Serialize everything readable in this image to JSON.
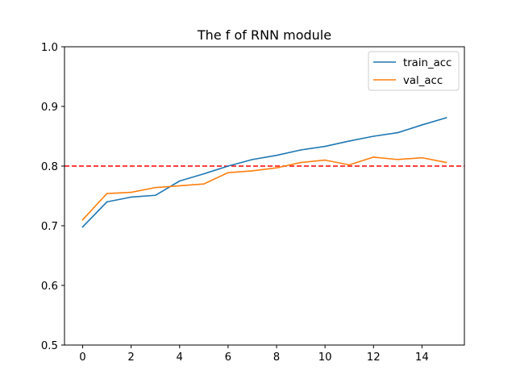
{
  "chart_data": {
    "type": "line",
    "title": "The f of RNN module",
    "xlabel": "",
    "ylabel": "",
    "x": [
      0,
      1,
      2,
      3,
      4,
      5,
      6,
      7,
      8,
      9,
      10,
      11,
      12,
      13,
      14,
      15
    ],
    "series": [
      {
        "name": "train_acc",
        "color": "#1f77b4",
        "values": [
          0.698,
          0.74,
          0.748,
          0.751,
          0.775,
          0.787,
          0.8,
          0.811,
          0.818,
          0.827,
          0.833,
          0.842,
          0.85,
          0.856,
          0.869,
          0.881
        ]
      },
      {
        "name": "val_acc",
        "color": "#ff7f0e",
        "values": [
          0.71,
          0.754,
          0.756,
          0.764,
          0.767,
          0.77,
          0.789,
          0.792,
          0.797,
          0.806,
          0.81,
          0.802,
          0.815,
          0.811,
          0.814,
          0.806
        ]
      }
    ],
    "reference_line": {
      "y": 0.8,
      "color": "#ff0000",
      "style": "dashed"
    },
    "xlim": [
      -0.75,
      15.75
    ],
    "ylim": [
      0.5,
      1.0
    ],
    "xticks": [
      0,
      2,
      4,
      6,
      8,
      10,
      12,
      14
    ],
    "yticks": [
      0.5,
      0.6,
      0.7,
      0.8,
      0.9,
      1.0
    ],
    "ytick_labels": [
      "0.5",
      "0.6",
      "0.7",
      "0.8",
      "0.9",
      "1.0"
    ],
    "grid": false,
    "legend_position": "top-right"
  }
}
